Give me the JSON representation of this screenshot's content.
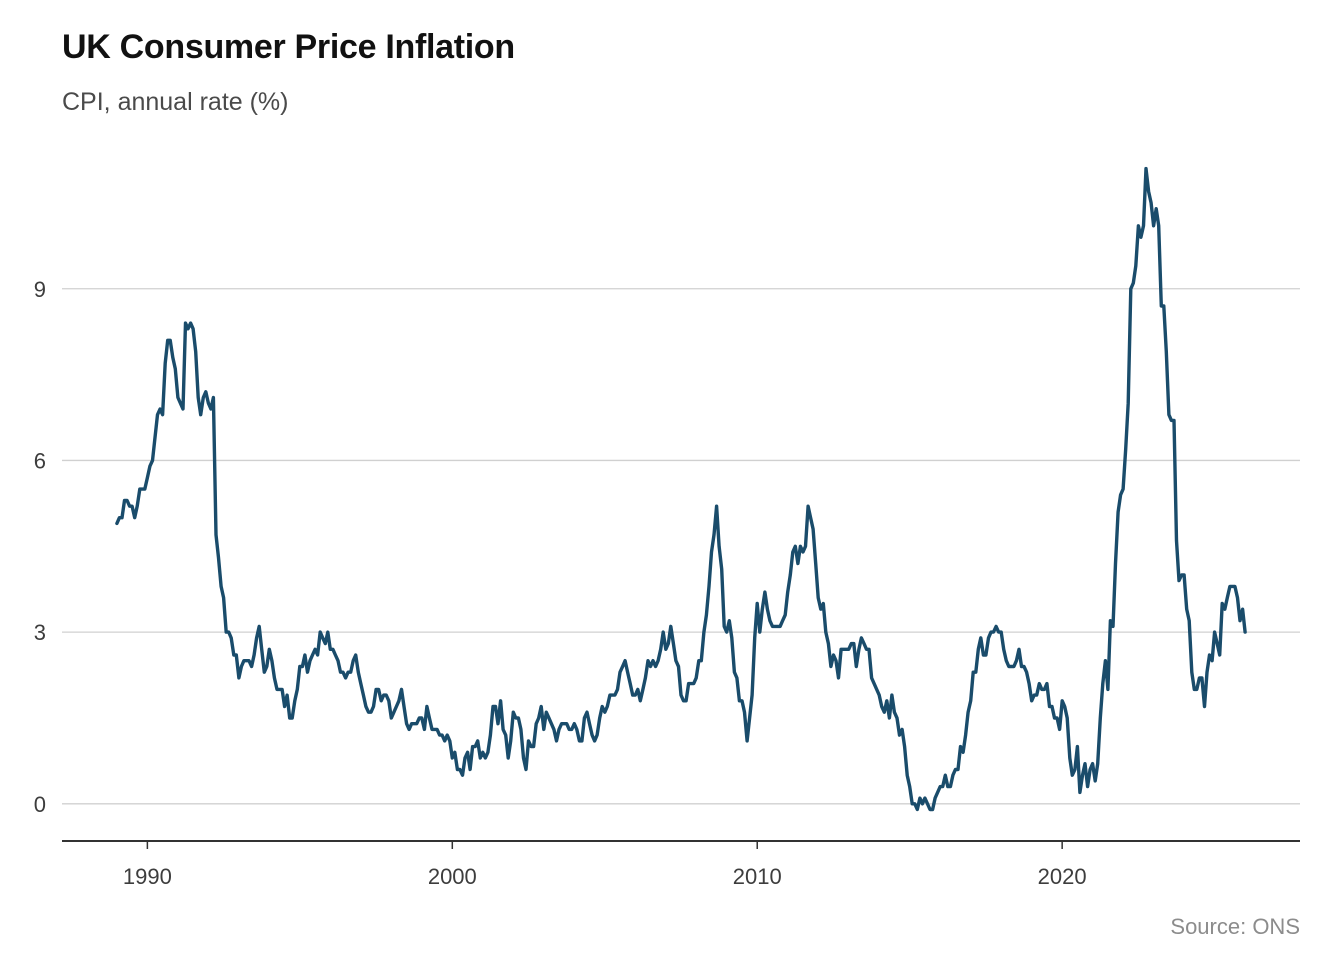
{
  "header": {
    "title": "UK Consumer Price Inflation",
    "subtitle": "CPI, annual rate (%)"
  },
  "footer": {
    "source": "Source: ONS"
  },
  "colors": {
    "line": "#1a4c6b",
    "grid": "#d0d0d0",
    "axis": "#333333",
    "tick_text": "#3d3d3d"
  },
  "chart_data": {
    "type": "line",
    "title": "UK Consumer Price Inflation",
    "subtitle": "CPI, annual rate (%)",
    "xlabel": "",
    "ylabel": "",
    "source": "Source: ONS",
    "xlim": [
      1987.2,
      2027.8
    ],
    "ylim": [
      -0.65,
      11.6
    ],
    "grid": "horizontal",
    "legend": "none",
    "yticks": [
      0,
      3,
      6,
      9
    ],
    "ytick_labels": [
      "0",
      "3",
      "6",
      "9"
    ],
    "xticks": [
      1990,
      2000,
      2010,
      2020
    ],
    "xtick_labels": [
      "1990",
      "2000",
      "2010",
      "2020"
    ],
    "series": [
      {
        "name": "CPI annual rate",
        "start_year": 1989.0,
        "step_years": 0.0833333,
        "values": [
          4.9,
          5.0,
          5.0,
          5.3,
          5.3,
          5.2,
          5.2,
          5.0,
          5.2,
          5.5,
          5.5,
          5.5,
          5.7,
          5.9,
          6.0,
          6.4,
          6.8,
          6.9,
          6.8,
          7.7,
          8.1,
          8.1,
          7.8,
          7.6,
          7.1,
          7.0,
          6.9,
          8.4,
          8.3,
          8.4,
          8.3,
          7.9,
          7.1,
          6.8,
          7.1,
          7.2,
          7.0,
          6.9,
          7.1,
          4.7,
          4.3,
          3.8,
          3.6,
          3.0,
          3.0,
          2.9,
          2.6,
          2.6,
          2.2,
          2.4,
          2.5,
          2.5,
          2.5,
          2.4,
          2.6,
          2.9,
          3.1,
          2.7,
          2.3,
          2.4,
          2.7,
          2.5,
          2.2,
          2.0,
          2.0,
          2.0,
          1.7,
          1.9,
          1.5,
          1.5,
          1.8,
          2.0,
          2.4,
          2.4,
          2.6,
          2.3,
          2.5,
          2.6,
          2.7,
          2.6,
          3.0,
          2.9,
          2.8,
          3.0,
          2.7,
          2.7,
          2.6,
          2.5,
          2.3,
          2.3,
          2.2,
          2.3,
          2.3,
          2.5,
          2.6,
          2.3,
          2.1,
          1.9,
          1.7,
          1.6,
          1.6,
          1.7,
          2.0,
          2.0,
          1.8,
          1.9,
          1.9,
          1.8,
          1.5,
          1.6,
          1.7,
          1.8,
          2.0,
          1.7,
          1.4,
          1.3,
          1.4,
          1.4,
          1.4,
          1.5,
          1.5,
          1.3,
          1.7,
          1.5,
          1.3,
          1.3,
          1.3,
          1.2,
          1.2,
          1.1,
          1.2,
          1.1,
          0.8,
          0.9,
          0.6,
          0.6,
          0.5,
          0.8,
          0.9,
          0.6,
          1.0,
          1.0,
          1.1,
          0.8,
          0.9,
          0.8,
          0.9,
          1.2,
          1.7,
          1.7,
          1.4,
          1.8,
          1.3,
          1.2,
          0.8,
          1.1,
          1.6,
          1.5,
          1.5,
          1.3,
          0.8,
          0.6,
          1.1,
          1.0,
          1.0,
          1.4,
          1.5,
          1.7,
          1.3,
          1.6,
          1.5,
          1.4,
          1.3,
          1.1,
          1.3,
          1.4,
          1.4,
          1.4,
          1.3,
          1.3,
          1.4,
          1.3,
          1.1,
          1.1,
          1.5,
          1.6,
          1.4,
          1.2,
          1.1,
          1.2,
          1.5,
          1.7,
          1.6,
          1.7,
          1.9,
          1.9,
          1.9,
          2.0,
          2.3,
          2.4,
          2.5,
          2.3,
          2.1,
          1.9,
          1.9,
          2.0,
          1.8,
          2.0,
          2.2,
          2.5,
          2.4,
          2.5,
          2.4,
          2.5,
          2.7,
          3.0,
          2.7,
          2.8,
          3.1,
          2.8,
          2.5,
          2.4,
          1.9,
          1.8,
          1.8,
          2.1,
          2.1,
          2.1,
          2.2,
          2.5,
          2.5,
          3.0,
          3.3,
          3.8,
          4.4,
          4.7,
          5.2,
          4.5,
          4.1,
          3.1,
          3.0,
          3.2,
          2.9,
          2.3,
          2.2,
          1.8,
          1.8,
          1.6,
          1.1,
          1.5,
          1.9,
          2.9,
          3.5,
          3.0,
          3.4,
          3.7,
          3.4,
          3.2,
          3.1,
          3.1,
          3.1,
          3.1,
          3.2,
          3.3,
          3.7,
          4.0,
          4.4,
          4.5,
          4.2,
          4.5,
          4.4,
          4.5,
          5.2,
          5.0,
          4.8,
          4.2,
          3.6,
          3.4,
          3.5,
          3.0,
          2.8,
          2.4,
          2.6,
          2.5,
          2.2,
          2.7,
          2.7,
          2.7,
          2.7,
          2.8,
          2.8,
          2.4,
          2.7,
          2.9,
          2.8,
          2.7,
          2.7,
          2.2,
          2.1,
          2.0,
          1.9,
          1.7,
          1.6,
          1.8,
          1.5,
          1.9,
          1.6,
          1.5,
          1.2,
          1.3,
          1.0,
          0.5,
          0.3,
          0.0,
          0.0,
          -0.1,
          0.1,
          0.0,
          0.1,
          0.0,
          -0.1,
          -0.1,
          0.1,
          0.2,
          0.3,
          0.3,
          0.5,
          0.3,
          0.3,
          0.5,
          0.6,
          0.6,
          1.0,
          0.9,
          1.2,
          1.6,
          1.8,
          2.3,
          2.3,
          2.7,
          2.9,
          2.6,
          2.6,
          2.9,
          3.0,
          3.0,
          3.1,
          3.0,
          3.0,
          2.7,
          2.5,
          2.4,
          2.4,
          2.4,
          2.5,
          2.7,
          2.4,
          2.4,
          2.3,
          2.1,
          1.8,
          1.9,
          1.9,
          2.1,
          2.0,
          2.0,
          2.1,
          1.7,
          1.7,
          1.5,
          1.5,
          1.3,
          1.8,
          1.7,
          1.5,
          0.8,
          0.5,
          0.6,
          1.0,
          0.2,
          0.5,
          0.7,
          0.3,
          0.6,
          0.7,
          0.4,
          0.7,
          1.5,
          2.1,
          2.5,
          2.0,
          3.2,
          3.1,
          4.2,
          5.1,
          5.4,
          5.5,
          6.2,
          7.0,
          9.0,
          9.1,
          9.4,
          10.1,
          9.9,
          10.1,
          11.1,
          10.7,
          10.5,
          10.1,
          10.4,
          10.1,
          8.7,
          8.7,
          7.9,
          6.8,
          6.7,
          6.7,
          4.6,
          3.9,
          4.0,
          4.0,
          3.4,
          3.2,
          2.3,
          2.0,
          2.0,
          2.2,
          2.2,
          1.7,
          2.3,
          2.6,
          2.5,
          3.0,
          2.8,
          2.6,
          3.5,
          3.4,
          3.6,
          3.8,
          3.8,
          3.8,
          3.6,
          3.2,
          3.4,
          3.0
        ]
      }
    ]
  }
}
